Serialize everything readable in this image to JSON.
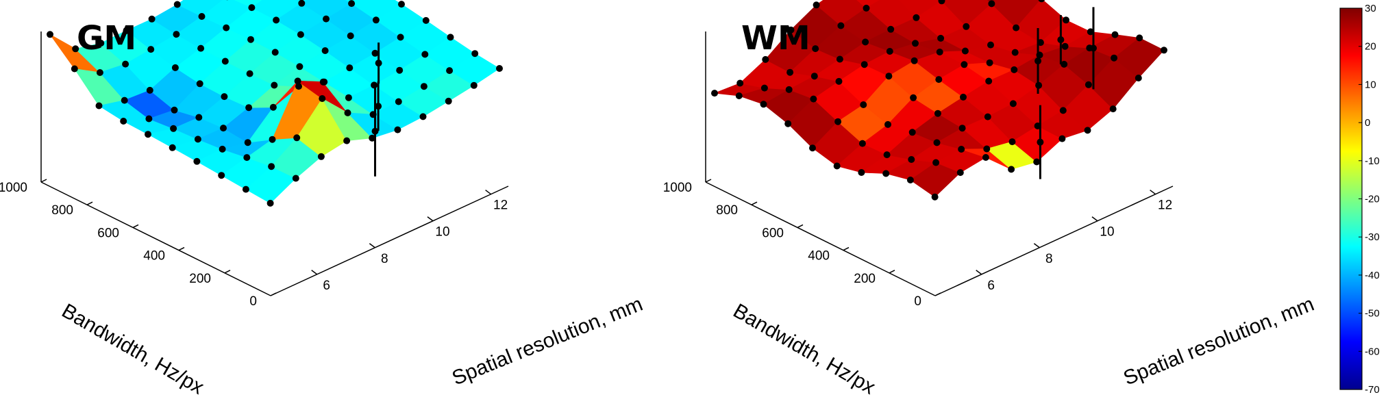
{
  "chart_data": [
    {
      "type": "surface",
      "title": "GM",
      "xlabel": "Spatial resolution, mm",
      "ylabel": "Bandwidth, Hz/px",
      "x_ticks": [
        "6",
        "8",
        "10",
        "12"
      ],
      "y_ticks": [
        "0",
        "200",
        "400",
        "600",
        "800",
        "1000"
      ],
      "xlim": [
        4.4,
        12.6
      ],
      "ylim": [
        0,
        1000
      ],
      "grid": false,
      "dominant_value": -33,
      "peaks": [
        {
          "x": 4.6,
          "y": 960,
          "value": 25
        },
        {
          "x": 7.6,
          "y": 240,
          "value": 20
        },
        {
          "x": 7.0,
          "y": 160,
          "value": 5
        }
      ],
      "lows": [
        {
          "x": 6.0,
          "y": 700,
          "value": -48
        },
        {
          "x": 6.6,
          "y": 300,
          "value": -50
        }
      ],
      "error_bars": [
        {
          "x": 10.5,
          "y": 300,
          "half_length": 5
        },
        {
          "x": 9.3,
          "y": 150,
          "half_length": 6
        },
        {
          "x": 8.4,
          "y": 50,
          "half_length": 11
        }
      ]
    },
    {
      "type": "surface",
      "title": "WM",
      "xlabel": "Spatial resolution, mm",
      "ylabel": "Bandwidth, Hz/px",
      "x_ticks": [
        "6",
        "8",
        "10",
        "12"
      ],
      "y_ticks": [
        "0",
        "200",
        "400",
        "600",
        "800",
        "1000"
      ],
      "xlim": [
        4.4,
        12.6
      ],
      "ylim": [
        0,
        1000
      ],
      "grid": false,
      "dominant_value": 24,
      "peaks": [],
      "lows": [
        {
          "x": 7.6,
          "y": 30,
          "value": -18
        },
        {
          "x": 6.2,
          "y": 500,
          "value": 2
        },
        {
          "x": 7.6,
          "y": 430,
          "value": 10
        },
        {
          "x": 9.6,
          "y": 420,
          "value": 12
        }
      ],
      "error_bars": [
        {
          "x": 11.9,
          "y": 400,
          "half_length": 6
        },
        {
          "x": 10.4,
          "y": 310,
          "half_length": 8
        },
        {
          "x": 11.6,
          "y": 220,
          "half_length": 10
        },
        {
          "x": 8.5,
          "y": 60,
          "half_length": 9
        }
      ]
    }
  ],
  "colorbar": {
    "ticks": [
      "30",
      "20",
      "10",
      "0",
      "-10",
      "-20",
      "-30",
      "-40",
      "-50",
      "-60",
      "-70"
    ],
    "range": [
      -70,
      30
    ],
    "colormap": "jet"
  }
}
